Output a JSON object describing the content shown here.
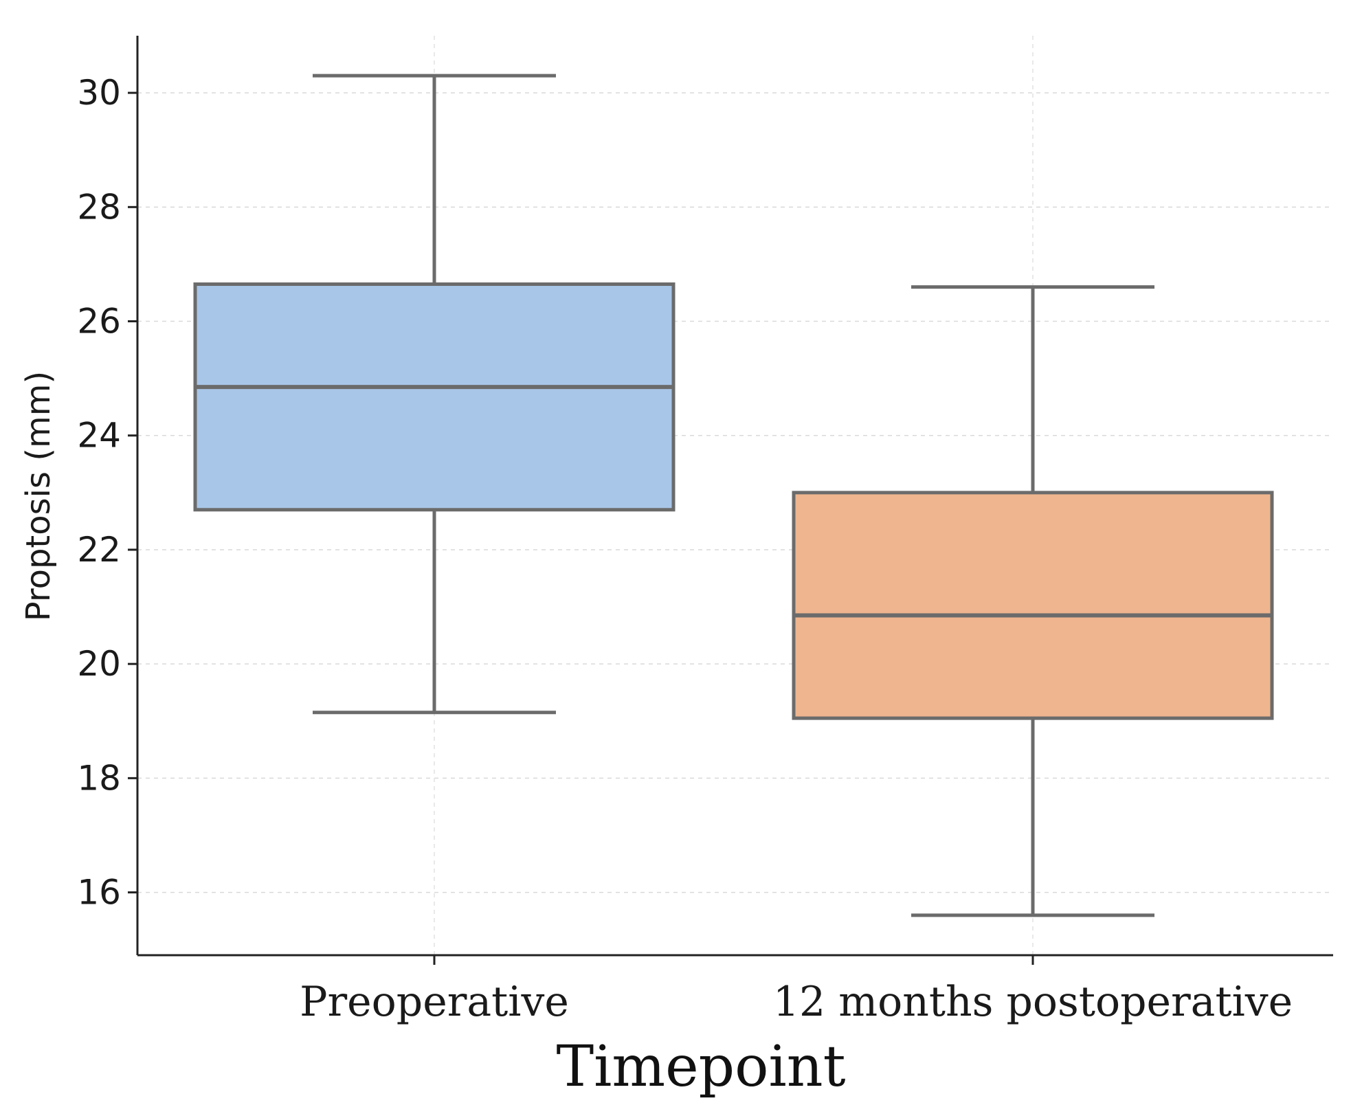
{
  "chart_data": {
    "type": "box",
    "title": "",
    "xlabel": "Timepoint",
    "ylabel": "Proptosis (mm)",
    "ylim": [
      14.9,
      31.0
    ],
    "yticks": [
      16,
      18,
      20,
      22,
      24,
      26,
      28,
      30
    ],
    "grid": true,
    "categories": [
      "Preoperative",
      "12 months postoperative"
    ],
    "boxes": [
      {
        "name": "Preoperative",
        "whisker_low": 19.15,
        "q1": 22.7,
        "median": 24.85,
        "q3": 26.65,
        "whisker_high": 30.3,
        "color": "#a8c6e8"
      },
      {
        "name": "12 months postoperative",
        "whisker_low": 15.6,
        "q1": 19.05,
        "median": 20.85,
        "q3": 23.0,
        "whisker_high": 26.6,
        "color": "#efb58e"
      }
    ],
    "edge_color": "#6b6b6b"
  }
}
